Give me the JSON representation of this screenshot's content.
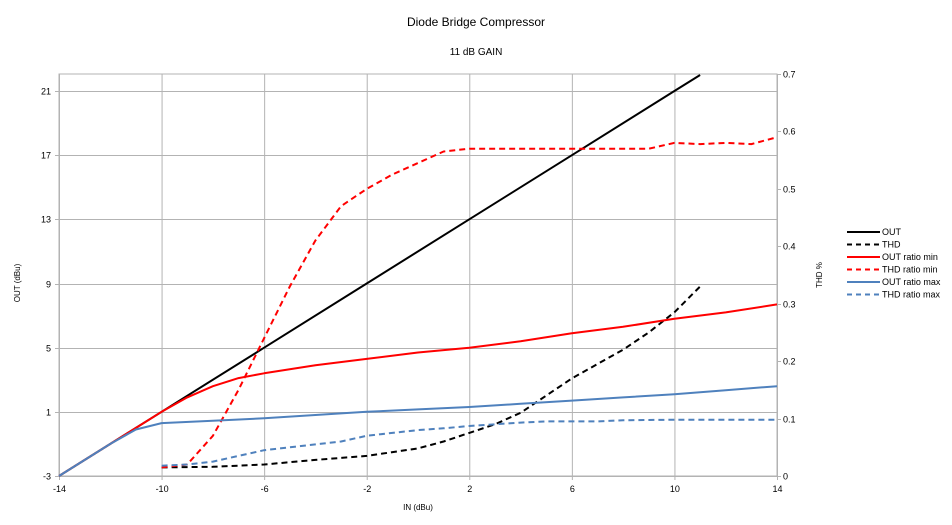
{
  "chart_data": {
    "type": "line",
    "title": "Diode Bridge Compressor",
    "subtitle": "11 dB GAIN",
    "xlabel": "IN (dBu)",
    "ylabel": "OUT (dBu)",
    "y2label": "THD %",
    "xlim": [
      -14,
      14
    ],
    "ylim": [
      -3,
      21
    ],
    "y2lim": [
      0,
      0.7
    ],
    "x_ticks": [
      -14,
      -10,
      -6,
      -2,
      2,
      6,
      10,
      14
    ],
    "y_ticks": [
      -3,
      1,
      5,
      9,
      13,
      17,
      21
    ],
    "y2_ticks": [
      0,
      0.1,
      0.2,
      0.3,
      0.4,
      0.5,
      0.6,
      0.7
    ],
    "grid": true,
    "legend_position": "right",
    "series": [
      {
        "name": "OUT",
        "axis": "left",
        "color": "#000000",
        "dash": false,
        "x": [
          -14,
          -10,
          -6,
          -2,
          2,
          6,
          10,
          11
        ],
        "y": [
          -3,
          1,
          5,
          9,
          13,
          17,
          21,
          22
        ]
      },
      {
        "name": "THD",
        "axis": "right",
        "color": "#000000",
        "dash": true,
        "x": [
          -10,
          -8,
          -6,
          -4,
          -2,
          0,
          1,
          2,
          3,
          4,
          5,
          6,
          7,
          8,
          9,
          10,
          11
        ],
        "y": [
          0.015,
          0.016,
          0.02,
          0.028,
          0.035,
          0.048,
          0.06,
          0.075,
          0.09,
          0.11,
          0.14,
          0.17,
          0.195,
          0.22,
          0.25,
          0.285,
          0.33
        ]
      },
      {
        "name": "OUT ratio min",
        "axis": "left",
        "color": "#ff0000",
        "dash": false,
        "x": [
          -14,
          -12,
          -10,
          -9,
          -8,
          -7,
          -6,
          -4,
          -2,
          0,
          2,
          4,
          6,
          8,
          10,
          12,
          14
        ],
        "y": [
          -3,
          -1,
          1,
          1.9,
          2.6,
          3.1,
          3.4,
          3.9,
          4.3,
          4.7,
          5.0,
          5.4,
          5.9,
          6.3,
          6.8,
          7.2,
          7.7
        ]
      },
      {
        "name": "THD ratio min",
        "axis": "right",
        "color": "#ff0000",
        "dash": true,
        "x": [
          -10,
          -9,
          -8,
          -7,
          -6,
          -5,
          -4,
          -3,
          -2,
          -1,
          0,
          1,
          2,
          3,
          4,
          5,
          6,
          7,
          8,
          9,
          10,
          11,
          12,
          13,
          14
        ],
        "y": [
          0.015,
          0.02,
          0.07,
          0.15,
          0.24,
          0.33,
          0.41,
          0.47,
          0.5,
          0.525,
          0.545,
          0.565,
          0.57,
          0.57,
          0.57,
          0.57,
          0.57,
          0.57,
          0.57,
          0.57,
          0.58,
          0.578,
          0.58,
          0.578,
          0.59
        ]
      },
      {
        "name": "OUT ratio max",
        "axis": "left",
        "color": "#4f81bd",
        "dash": false,
        "x": [
          -14,
          -13,
          -12,
          -11,
          -10,
          -8,
          -6,
          -4,
          -2,
          0,
          2,
          4,
          6,
          8,
          10,
          12,
          14
        ],
        "y": [
          -3,
          -2,
          -1,
          -0.1,
          0.3,
          0.45,
          0.6,
          0.8,
          1.0,
          1.15,
          1.3,
          1.5,
          1.7,
          1.9,
          2.1,
          2.35,
          2.6
        ]
      },
      {
        "name": "THD ratio max",
        "axis": "right",
        "color": "#4f81bd",
        "dash": true,
        "x": [
          -10,
          -9,
          -8,
          -7,
          -6,
          -5,
          -4,
          -3,
          -2,
          -1,
          0,
          1,
          2,
          3,
          4,
          5,
          6,
          7,
          8,
          10,
          12,
          14
        ],
        "y": [
          0.018,
          0.02,
          0.025,
          0.035,
          0.045,
          0.05,
          0.055,
          0.06,
          0.07,
          0.075,
          0.08,
          0.083,
          0.087,
          0.09,
          0.093,
          0.095,
          0.095,
          0.095,
          0.097,
          0.098,
          0.098,
          0.098
        ]
      }
    ]
  }
}
